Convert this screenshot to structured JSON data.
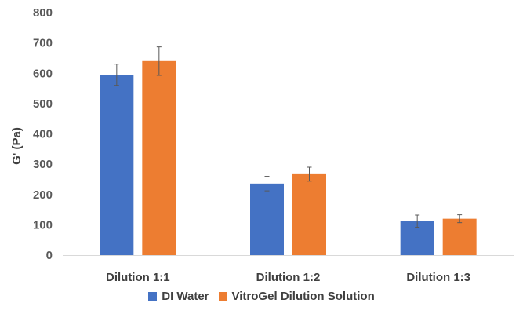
{
  "chart_data": {
    "type": "bar",
    "categories": [
      "Dilution 1:1",
      "Dilution 1:2",
      "Dilution 1:3"
    ],
    "series": [
      {
        "name": "DI Water",
        "color": "#4472C4",
        "values": [
          595,
          236,
          112
        ],
        "errors": [
          35,
          24,
          20
        ]
      },
      {
        "name": "VitroGel Dilution Solution",
        "color": "#ED7D31",
        "values": [
          640,
          267,
          120
        ],
        "errors": [
          47,
          23,
          13
        ]
      }
    ],
    "title": "",
    "xlabel": "",
    "ylabel": "G' (Pa)",
    "ylim": [
      0,
      800
    ],
    "yticks": [
      0,
      100,
      200,
      300,
      400,
      500,
      600,
      700,
      800
    ],
    "grid": false,
    "legend_position": "bottom"
  }
}
